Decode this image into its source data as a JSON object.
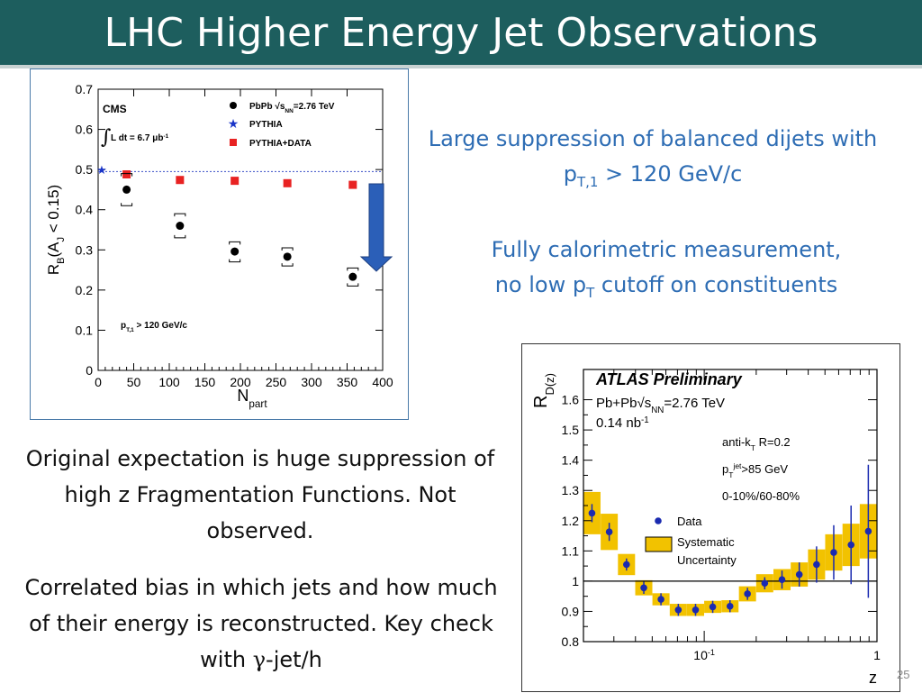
{
  "slide": {
    "title": "LHC Higher Energy Jet Observations",
    "page_number": "25",
    "point1": {
      "pre": "Large suppression of balanced dijets with p",
      "sub": "T,1",
      "post": " > 120 GeV/c"
    },
    "point2": {
      "line1": "Fully calorimetric measurement,",
      "line2_pre": "no low p",
      "line2_sub": "T",
      "line2_post": " cutoff on constituents"
    },
    "point3": "Original expectation is huge suppression of high z Fragmentation Functions.  Not observed.",
    "point4": {
      "pre": "Correlated bias in which jets and how much of their energy is reconstructed. Key check with ",
      "symbol": "γ",
      "post": "-jet/h"
    }
  },
  "colors": {
    "title_bar": "#1d5e5e",
    "blue_text": "#2e6db4",
    "arrow": "#2b5fb8",
    "atlas_band": "#f2c200"
  },
  "chart_data": [
    {
      "type": "scatter",
      "experiment": "CMS",
      "xlabel": "N",
      "xlabel_sub": "part",
      "ylabel": "R",
      "ylabel_sub": "B",
      "ylabel_tail": "(A",
      "ylabel_tail_sub": "J",
      "ylabel_end": " < 0.15)",
      "xlim": [
        0,
        400
      ],
      "ylim": [
        0,
        0.7
      ],
      "xticks": [
        "0",
        "50",
        "100",
        "150",
        "200",
        "250",
        "300",
        "350",
        "400"
      ],
      "yticks": [
        "0",
        "0.1",
        "0.2",
        "0.3",
        "0.4",
        "0.5",
        "0.6",
        "0.7"
      ],
      "luminosity": {
        "pre": "L dt = 6.7 ",
        "mu": "μ",
        "b": "b",
        "sup": "-1"
      },
      "cut": {
        "pre": "p",
        "sub": "T,1",
        "post": " > 120 GeV/c"
      },
      "legend": {
        "pbpb": {
          "pre": "PbPb ",
          "sqrt": "√s",
          "sub": "NN",
          "post": "=2.76 TeV"
        },
        "pythia": "PYTHIA",
        "pythia_data": "PYTHIA+DATA"
      },
      "pythia_reference": 0.495,
      "series": [
        {
          "name": "PbPb",
          "x": [
            40,
            115,
            192,
            266,
            358
          ],
          "y": [
            0.45,
            0.36,
            0.296,
            0.283,
            0.233
          ],
          "sys_low": [
            0.41,
            0.33,
            0.27,
            0.26,
            0.21
          ],
          "sys_high": [
            0.49,
            0.39,
            0.32,
            0.305,
            0.255
          ]
        },
        {
          "name": "PYTHIA+DATA",
          "x": [
            40,
            115,
            192,
            266,
            358
          ],
          "y": [
            0.488,
            0.474,
            0.472,
            0.466,
            0.462
          ]
        },
        {
          "name": "PYTHIA",
          "x": [
            5
          ],
          "y": [
            0.5
          ]
        }
      ]
    },
    {
      "type": "scatter",
      "experiment": "ATLAS Preliminary",
      "x_scale": "log",
      "xlabel": "z",
      "ylabel": "R",
      "ylabel_sub": "D(z)",
      "xlim": [
        0.02,
        1
      ],
      "ylim": [
        0.8,
        1.7
      ],
      "xtick_labels": [
        {
          "x": 0.1,
          "base": "10",
          "sup": "-1"
        },
        {
          "x": 1,
          "base": "1"
        }
      ],
      "yticks": [
        "0.8",
        "0.9",
        "1",
        "1.1",
        "1.2",
        "1.3",
        "1.4",
        "1.5",
        "1.6"
      ],
      "info": {
        "system_pre": "Pb+Pb",
        "system_sqrt": "√s",
        "system_sub": "NN",
        "system_post": "=2.76 TeV",
        "lumi": "0.14 nb",
        "lumi_sup": "-1",
        "algo_pre": "anti-k",
        "algo_sub": "T",
        "algo_post": " R=0.2",
        "pt_pre": "p",
        "pt_sup": "jet",
        "pt_sub": "T",
        "pt_post": ">85 GeV",
        "centrality": "0-10%/60-80%"
      },
      "legend": {
        "data": "Data",
        "systematic_line1": "Systematic",
        "systematic_line2": "Uncertainty"
      },
      "series": [
        {
          "name": "Data",
          "z": [
            0.0224,
            0.0282,
            0.0355,
            0.0447,
            0.0562,
            0.0708,
            0.0891,
            0.112,
            0.141,
            0.178,
            0.224,
            0.282,
            0.355,
            0.447,
            0.562,
            0.708,
            0.891
          ],
          "y": [
            1.225,
            1.163,
            1.055,
            0.978,
            0.94,
            0.905,
            0.905,
            0.915,
            0.917,
            0.958,
            0.993,
            1.005,
            1.022,
            1.055,
            1.095,
            1.12,
            1.165
          ],
          "stat_err": [
            0.03,
            0.03,
            0.02,
            0.02,
            0.02,
            0.02,
            0.02,
            0.02,
            0.02,
            0.02,
            0.02,
            0.03,
            0.04,
            0.06,
            0.09,
            0.13,
            0.22
          ],
          "sys_err": [
            0.07,
            0.06,
            0.035,
            0.025,
            0.02,
            0.02,
            0.02,
            0.02,
            0.02,
            0.025,
            0.03,
            0.035,
            0.04,
            0.05,
            0.06,
            0.07,
            0.09
          ]
        }
      ]
    }
  ]
}
